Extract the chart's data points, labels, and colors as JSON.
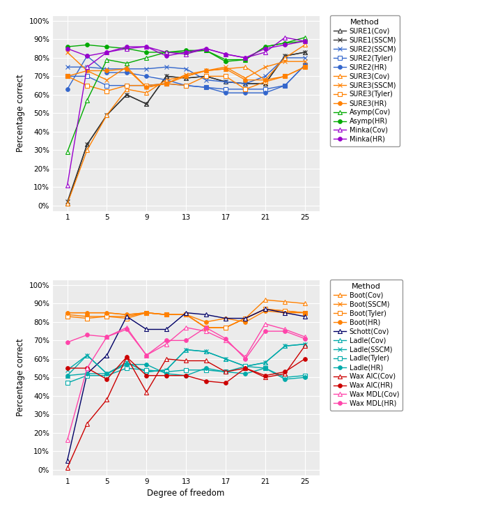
{
  "x": [
    1,
    3,
    5,
    7,
    9,
    11,
    13,
    15,
    17,
    19,
    21,
    23,
    25
  ],
  "ylabel": "Percentage correct",
  "xlabel": "Degree of freedom",
  "plot1": {
    "SURE1(Cov)": [
      1,
      33,
      49,
      60,
      55,
      70,
      69,
      70,
      67,
      66,
      66,
      81,
      83
    ],
    "SURE1(SSCM)": [
      2,
      33,
      49,
      60,
      55,
      70,
      69,
      70,
      67,
      66,
      66,
      81,
      83
    ],
    "SURE2(SSCM)": [
      75,
      75,
      74,
      74,
      74,
      75,
      74,
      68,
      67,
      66,
      70,
      80,
      80
    ],
    "SURE2(Tyler)": [
      70,
      70,
      65,
      65,
      65,
      66,
      65,
      64,
      63,
      63,
      63,
      65,
      76
    ],
    "SURE2(HR)": [
      63,
      81,
      72,
      72,
      70,
      68,
      65,
      64,
      61,
      61,
      61,
      65,
      76
    ],
    "SURE3(Cov)": [
      1,
      30,
      49,
      63,
      61,
      68,
      70,
      73,
      74,
      75,
      68,
      80,
      87
    ],
    "SURE3(SSCM)": [
      83,
      73,
      68,
      75,
      64,
      66,
      71,
      73,
      75,
      69,
      75,
      78,
      78
    ],
    "SURE3(Tyler)": [
      70,
      65,
      62,
      65,
      65,
      66,
      65,
      70,
      70,
      63,
      67,
      70,
      75
    ],
    "SURE3(HR)": [
      70,
      73,
      73,
      74,
      64,
      66,
      70,
      73,
      74,
      68,
      68,
      70,
      75
    ],
    "Asymp(Cov)": [
      29,
      57,
      79,
      77,
      80,
      83,
      83,
      84,
      79,
      79,
      86,
      88,
      91
    ],
    "Asymp(HR)": [
      86,
      87,
      86,
      85,
      83,
      83,
      84,
      84,
      78,
      79,
      86,
      88,
      89
    ],
    "Minka(Cov)": [
      11,
      75,
      83,
      85,
      86,
      83,
      82,
      85,
      82,
      80,
      83,
      91,
      89
    ],
    "Minka(HR)": [
      85,
      81,
      83,
      86,
      86,
      81,
      83,
      85,
      82,
      80,
      85,
      87,
      89
    ]
  },
  "plot2": {
    "Boot(Cov)": [
      85,
      85,
      85,
      84,
      85,
      84,
      84,
      77,
      77,
      82,
      92,
      91,
      90
    ],
    "Boot(SSCM)": [
      84,
      83,
      83,
      83,
      85,
      84,
      84,
      77,
      77,
      82,
      87,
      86,
      85
    ],
    "Boot(Tyler)": [
      83,
      82,
      83,
      82,
      85,
      84,
      84,
      77,
      77,
      82,
      87,
      86,
      85
    ],
    "Boot(HR)": [
      85,
      85,
      85,
      84,
      85,
      84,
      84,
      80,
      82,
      80,
      86,
      85,
      85
    ],
    "Schott(Cov)": [
      5,
      52,
      62,
      83,
      76,
      76,
      85,
      84,
      82,
      82,
      87,
      85,
      83
    ],
    "Ladle(Cov)": [
      51,
      62,
      52,
      58,
      53,
      54,
      65,
      64,
      60,
      56,
      58,
      67,
      68
    ],
    "Ladle(SSCM)": [
      54,
      62,
      52,
      58,
      53,
      54,
      65,
      64,
      60,
      56,
      58,
      67,
      68
    ],
    "Ladle(Tyler)": [
      47,
      51,
      51,
      55,
      54,
      53,
      54,
      54,
      53,
      56,
      55,
      50,
      51
    ],
    "Ladle(HR)": [
      51,
      52,
      52,
      57,
      57,
      52,
      51,
      55,
      53,
      52,
      55,
      49,
      50
    ],
    "Wax AIC(Cov)": [
      1,
      25,
      38,
      61,
      42,
      60,
      59,
      59,
      53,
      55,
      50,
      52,
      67
    ],
    "Wax AIC(HR)": [
      55,
      55,
      49,
      61,
      51,
      51,
      51,
      48,
      47,
      55,
      51,
      53,
      60
    ],
    "Wax MDL(Cov)": [
      16,
      55,
      72,
      77,
      62,
      68,
      77,
      75,
      70,
      61,
      79,
      76,
      72
    ],
    "Wax MDL(HR)": [
      69,
      73,
      72,
      76,
      62,
      70,
      70,
      77,
      71,
      60,
      75,
      75,
      71
    ]
  },
  "colors1": {
    "SURE1(Cov)": "#333333",
    "SURE1(SSCM)": "#333333",
    "SURE2(SSCM)": "#3366CC",
    "SURE2(Tyler)": "#3366CC",
    "SURE2(HR)": "#3366CC",
    "SURE3(Cov)": "#FF8000",
    "SURE3(SSCM)": "#FF8000",
    "SURE3(Tyler)": "#FF8000",
    "SURE3(HR)": "#FF8000",
    "Asymp(Cov)": "#00AA00",
    "Asymp(HR)": "#00AA00",
    "Minka(Cov)": "#9900CC",
    "Minka(HR)": "#9900CC"
  },
  "colors2": {
    "Boot(Cov)": "#FF8000",
    "Boot(SSCM)": "#FF8000",
    "Boot(Tyler)": "#FF8000",
    "Boot(HR)": "#FF8000",
    "Schott(Cov)": "#000066",
    "Ladle(Cov)": "#00AAAA",
    "Ladle(SSCM)": "#00AAAA",
    "Ladle(Tyler)": "#00AAAA",
    "Ladle(HR)": "#00AAAA",
    "Wax AIC(Cov)": "#CC0000",
    "Wax AIC(HR)": "#CC0000",
    "Wax MDL(Cov)": "#FF44AA",
    "Wax MDL(HR)": "#FF44AA"
  },
  "markers1": {
    "SURE1(Cov)": "^",
    "SURE1(SSCM)": "x",
    "SURE2(SSCM)": "x",
    "SURE2(Tyler)": "s",
    "SURE2(HR)": "o",
    "SURE3(Cov)": "^",
    "SURE3(SSCM)": "x",
    "SURE3(Tyler)": "s",
    "SURE3(HR)": "o",
    "Asymp(Cov)": "^",
    "Asymp(HR)": "o",
    "Minka(Cov)": "^",
    "Minka(HR)": "o"
  },
  "markers2": {
    "Boot(Cov)": "^",
    "Boot(SSCM)": "x",
    "Boot(Tyler)": "s",
    "Boot(HR)": "o",
    "Schott(Cov)": "^",
    "Ladle(Cov)": "^",
    "Ladle(SSCM)": "x",
    "Ladle(Tyler)": "s",
    "Ladle(HR)": "o",
    "Wax AIC(Cov)": "^",
    "Wax AIC(HR)": "o",
    "Wax MDL(Cov)": "^",
    "Wax MDL(HR)": "o"
  },
  "filled1": {
    "SURE1(Cov)": false,
    "SURE1(SSCM)": false,
    "SURE2(SSCM)": false,
    "SURE2(Tyler)": false,
    "SURE2(HR)": true,
    "SURE3(Cov)": false,
    "SURE3(SSCM)": false,
    "SURE3(Tyler)": false,
    "SURE3(HR)": true,
    "Asymp(Cov)": false,
    "Asymp(HR)": true,
    "Minka(Cov)": false,
    "Minka(HR)": true
  },
  "filled2": {
    "Boot(Cov)": false,
    "Boot(SSCM)": false,
    "Boot(Tyler)": false,
    "Boot(HR)": true,
    "Schott(Cov)": false,
    "Ladle(Cov)": false,
    "Ladle(SSCM)": false,
    "Ladle(Tyler)": false,
    "Ladle(HR)": true,
    "Wax AIC(Cov)": false,
    "Wax AIC(HR)": true,
    "Wax MDL(Cov)": false,
    "Wax MDL(HR)": true
  },
  "bg_color": "#EBEBEB",
  "grid_color": "#FFFFFF",
  "spine_color": "#FFFFFF"
}
